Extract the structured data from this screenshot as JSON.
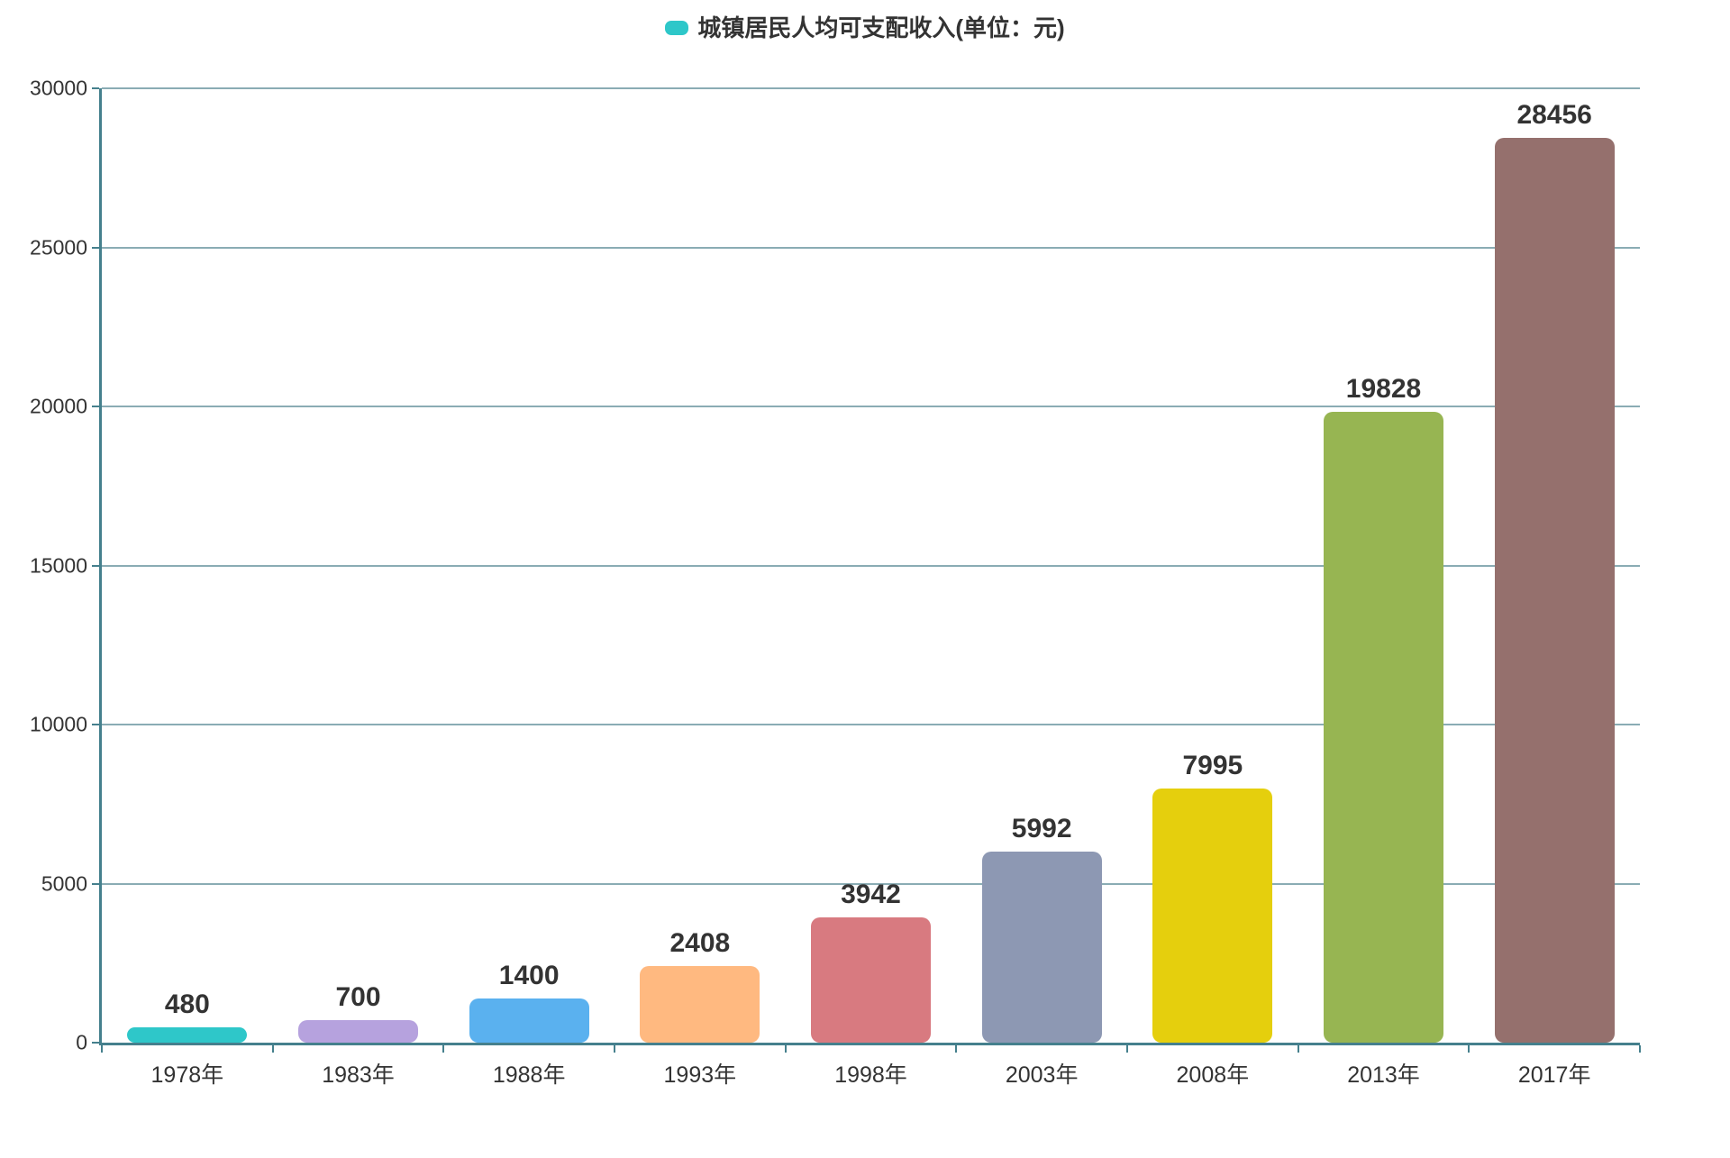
{
  "chart_data": {
    "type": "bar",
    "title": "城镇居民人均可支配收入(单位：元)",
    "legend": {
      "label": "城镇居民人均可支配收入(单位：元)",
      "marker_color": "#2ec7c9",
      "position": "top-center"
    },
    "categories": [
      "1978年",
      "1983年",
      "1988年",
      "1993年",
      "1998年",
      "2003年",
      "2008年",
      "2013年",
      "2017年"
    ],
    "values": [
      480,
      700,
      1400,
      2408,
      3942,
      5992,
      7995,
      19828,
      28456
    ],
    "value_labels": [
      "480",
      "700",
      "1400",
      "2408",
      "3942",
      "5992",
      "7995",
      "19828",
      "28456"
    ],
    "bar_colors": [
      "#2ec7c9",
      "#b6a2de",
      "#5ab1ef",
      "#ffb980",
      "#d87a80",
      "#8d98b3",
      "#e5cf0d",
      "#97b552",
      "#95706d"
    ],
    "xlabel": "",
    "ylabel": "",
    "ylim": [
      0,
      30000
    ],
    "yticks": [
      0,
      5000,
      10000,
      15000,
      20000,
      25000,
      30000
    ],
    "ytick_labels": [
      "0",
      "5000",
      "10000",
      "15000",
      "20000",
      "25000",
      "30000"
    ],
    "grid": "on",
    "colors": {
      "axis_line": "#45808d",
      "grid_line": "#8aacb4",
      "text": "#333333",
      "background": "#ffffff"
    }
  }
}
